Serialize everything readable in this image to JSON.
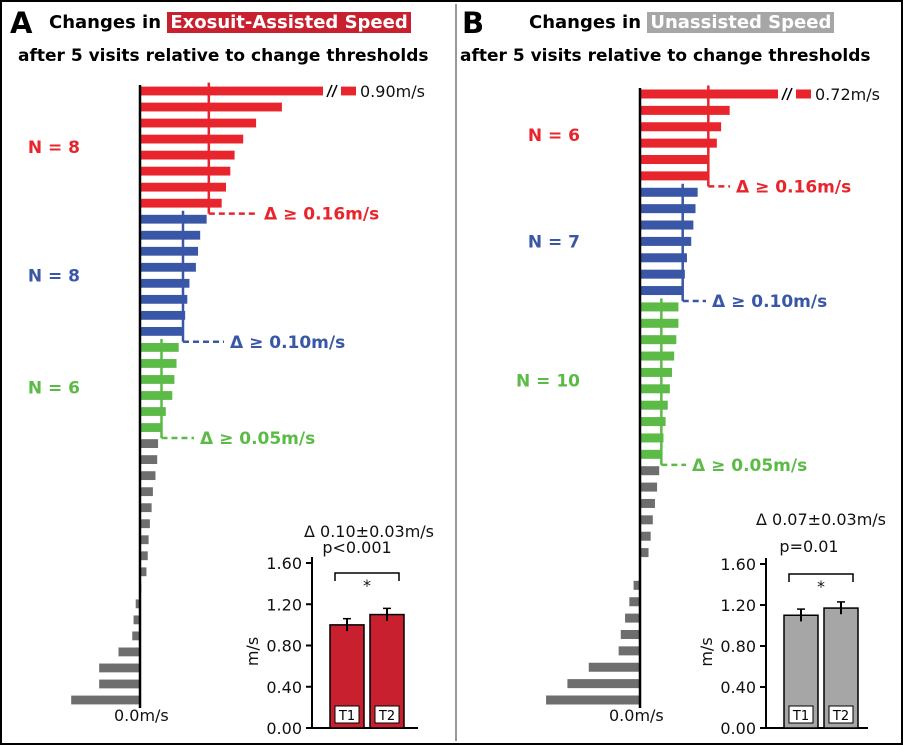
{
  "panels": [
    {
      "letter": "A",
      "title_prefix": "Changes in",
      "title_highlight": "Exosuit-Assisted Speed",
      "title_line2": "after 5 visits relative to change thresholds",
      "highlight_color": "#c8202f",
      "baseline_label": "0.0m/s"
    },
    {
      "letter": "B",
      "title_prefix": "Changes in",
      "title_highlight": "Unassisted Speed",
      "title_line2": "after 5 visits relative to change thresholds",
      "highlight_color": "#a6a6a6",
      "baseline_label": "0.0m/s"
    }
  ],
  "chart_data": [
    {
      "type": "bar",
      "orientation": "horizontal",
      "panel": "A",
      "title": "Changes in Exosuit-Assisted Speed after 5 visits relative to change thresholds",
      "colors": {
        "high": "#e8242c",
        "mid": "#3a57a7",
        "low": "#5cbb46",
        "none": "#6e6e6e",
        "axis": "#000000"
      },
      "groups": [
        {
          "name": "N = 8",
          "count_label": "N = 8",
          "threshold_label": "Δ ≥ 0.16m/s",
          "threshold": 0.16,
          "color": "#e8242c",
          "values": [
            0.9,
            0.33,
            0.27,
            0.24,
            0.22,
            0.21,
            0.2,
            0.19
          ]
        },
        {
          "name": "N = 8",
          "count_label": "N = 8",
          "threshold_label": "Δ ≥ 0.10m/s",
          "threshold": 0.1,
          "color": "#3a57a7",
          "values": [
            0.155,
            0.14,
            0.135,
            0.13,
            0.115,
            0.11,
            0.105,
            0.1
          ]
        },
        {
          "name": "N = 6",
          "count_label": "N = 6",
          "threshold_label": "Δ ≥ 0.05m/s",
          "threshold": 0.05,
          "color": "#5cbb46",
          "values": [
            0.09,
            0.085,
            0.08,
            0.075,
            0.06,
            0.05
          ]
        },
        {
          "name": "",
          "count_label": "",
          "threshold_label": "",
          "color": "#6e6e6e",
          "values": [
            0.042,
            0.04,
            0.036,
            0.03,
            0.027,
            0.023,
            0.02,
            0.018,
            0.015,
            0.003,
            -0.01,
            -0.015,
            -0.018,
            -0.05,
            -0.095,
            -0.095,
            -0.16
          ]
        }
      ],
      "axis_break_value_label": "0.90m/s",
      "xlabel": "0.0m/s",
      "inset": {
        "type": "bar",
        "annotation_top": "Δ 0.10±0.03m/s",
        "annotation_p": "p<0.001",
        "significance": "*",
        "ylabel": "m/s",
        "ylim": [
          0.0,
          1.6
        ],
        "y_ticks": [
          "0.00",
          "0.40",
          "0.80",
          "1.20",
          "1.60"
        ],
        "categories": [
          "T1",
          "T2"
        ],
        "values": [
          1.0,
          1.1
        ],
        "errors": [
          0.06,
          0.06
        ],
        "color": "#c8202f"
      }
    },
    {
      "type": "bar",
      "orientation": "horizontal",
      "panel": "B",
      "title": "Changes in Unassisted Speed after 5 visits relative to change thresholds",
      "colors": {
        "high": "#e8242c",
        "mid": "#3a57a7",
        "low": "#5cbb46",
        "none": "#6e6e6e",
        "axis": "#000000"
      },
      "groups": [
        {
          "name": "N = 6",
          "count_label": "N = 6",
          "threshold_label": "Δ ≥ 0.16m/s",
          "threshold": 0.16,
          "color": "#e8242c",
          "values": [
            0.72,
            0.21,
            0.19,
            0.18,
            0.16,
            0.16
          ]
        },
        {
          "name": "N = 7",
          "count_label": "N = 7",
          "threshold_label": "Δ ≥ 0.10m/s",
          "threshold": 0.1,
          "color": "#3a57a7",
          "values": [
            0.135,
            0.13,
            0.125,
            0.12,
            0.11,
            0.105,
            0.1
          ]
        },
        {
          "name": "N = 10",
          "count_label": "N = 10",
          "threshold_label": "Δ ≥ 0.05m/s",
          "threshold": 0.05,
          "color": "#5cbb46",
          "values": [
            0.09,
            0.09,
            0.085,
            0.08,
            0.075,
            0.07,
            0.065,
            0.06,
            0.055,
            0.05
          ]
        },
        {
          "name": "",
          "count_label": "",
          "threshold_label": "",
          "color": "#6e6e6e",
          "values": [
            0.045,
            0.04,
            0.035,
            0.03,
            0.025,
            0.02,
            0.0,
            -0.015,
            -0.025,
            -0.035,
            -0.045,
            -0.05,
            -0.12,
            -0.17,
            -0.22
          ]
        }
      ],
      "axis_break_value_label": "0.72m/s",
      "xlabel": "0.0m/s",
      "inset": {
        "type": "bar",
        "annotation_top": "Δ 0.07±0.03m/s",
        "annotation_p": "p=0.01",
        "significance": "*",
        "ylabel": "m/s",
        "ylim": [
          0.0,
          1.6
        ],
        "y_ticks": [
          "0.00",
          "0.40",
          "0.80",
          "1.20",
          "1.60"
        ],
        "categories": [
          "T1",
          "T2"
        ],
        "values": [
          1.1,
          1.17
        ],
        "errors": [
          0.06,
          0.06
        ],
        "color": "#a6a6a6"
      }
    }
  ]
}
